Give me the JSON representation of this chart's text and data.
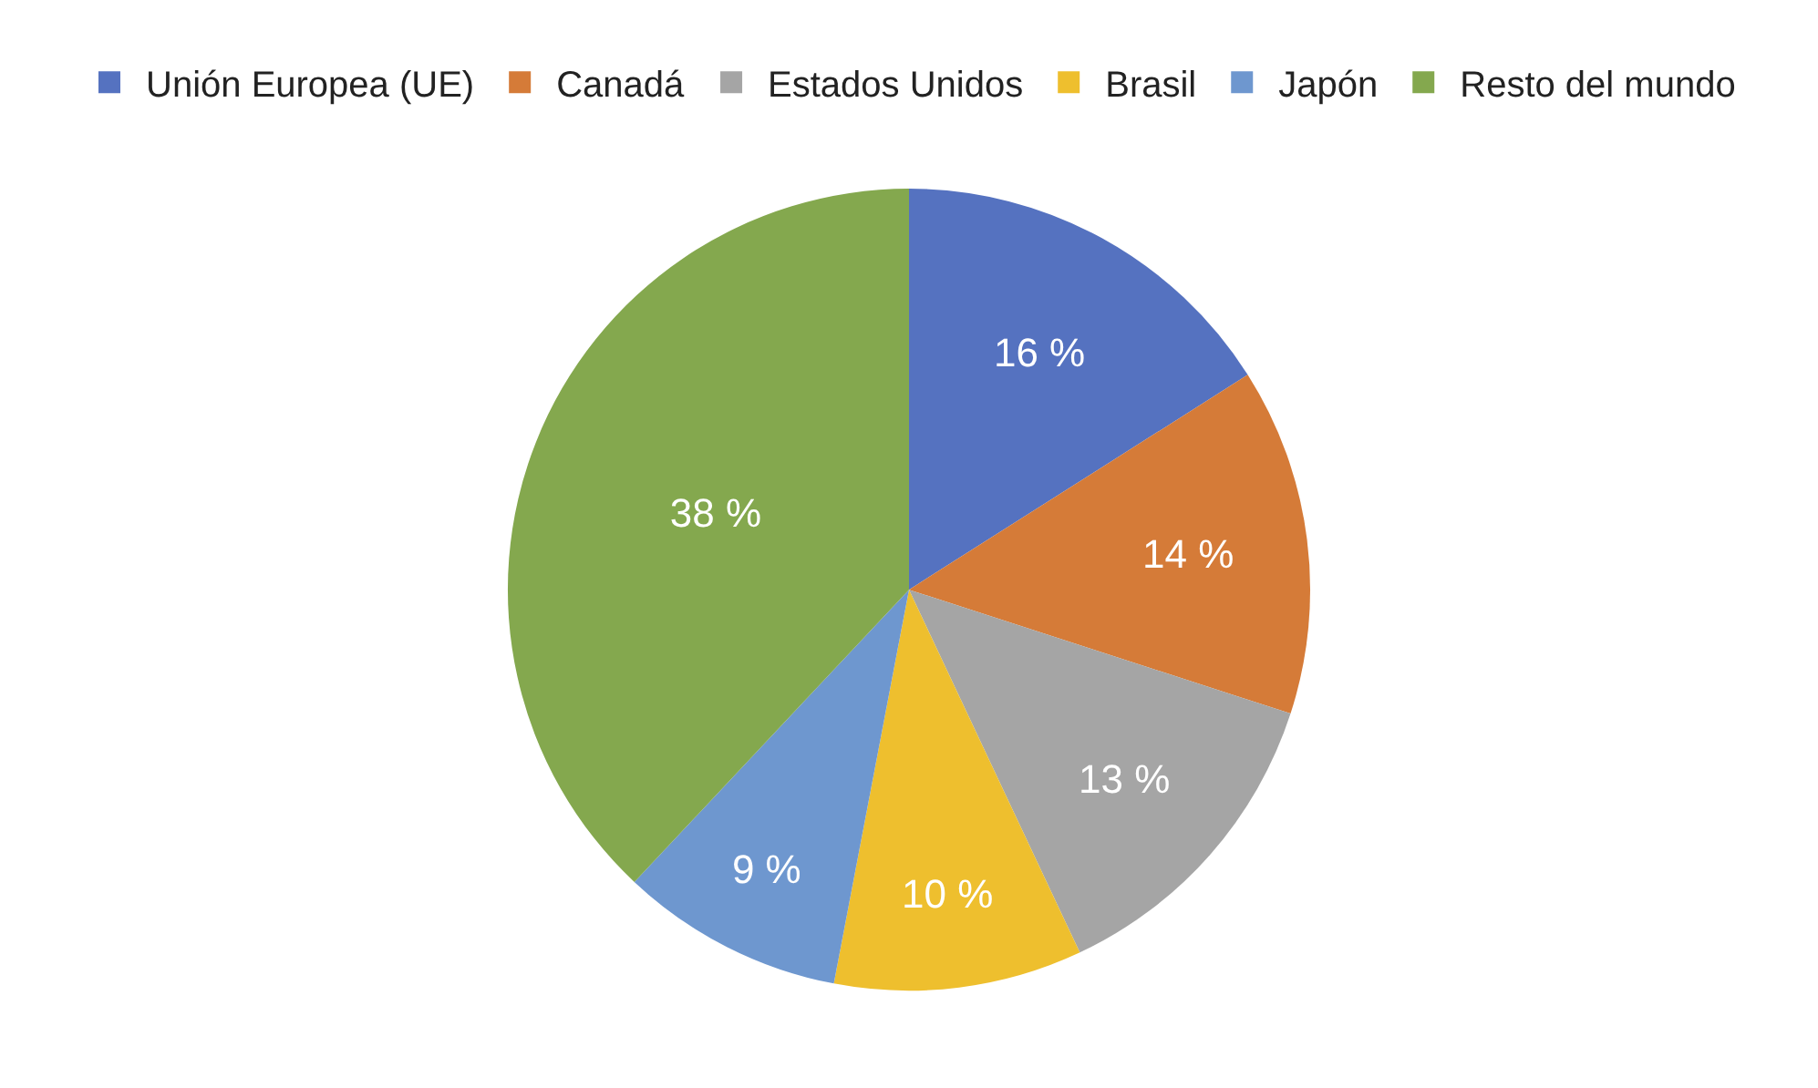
{
  "chart_data": {
    "type": "pie",
    "categories": [
      "Unión Europea (UE)",
      "Canadá",
      "Estados Unidos",
      "Brasil",
      "Japón",
      "Resto del mundo"
    ],
    "values": [
      16,
      14,
      13,
      10,
      9,
      38
    ],
    "value_labels": [
      "16 %",
      "14 %",
      "13 %",
      "10 %",
      "9 %",
      "38 %"
    ],
    "colors": [
      "#5572c0",
      "#d57b38",
      "#a5a5a5",
      "#eebf2e",
      "#6e97cf",
      "#84a84e"
    ],
    "legend": "top"
  }
}
